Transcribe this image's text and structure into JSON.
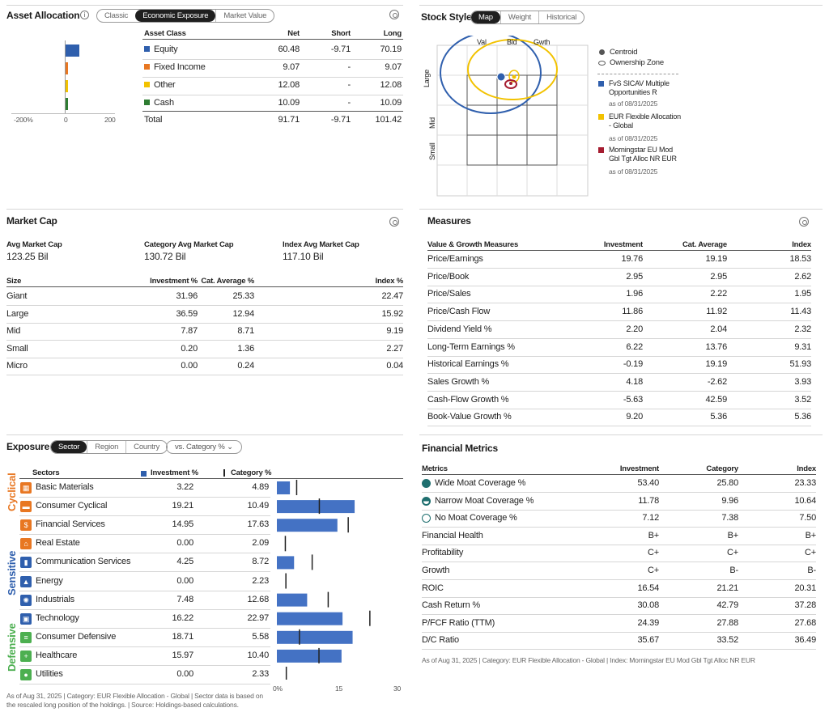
{
  "asset_allocation": {
    "title": "Asset Allocation",
    "tabs": [
      "Classic",
      "Economic Exposure",
      "Market Value"
    ],
    "active_tab": "Economic Exposure",
    "headers": [
      "Asset Class",
      "Net",
      "Short",
      "Long"
    ],
    "rows": [
      {
        "label": "Equity",
        "color": "#2f5fad",
        "net": "60.48",
        "short": "-9.71",
        "long": "70.19",
        "net_value": 60.48
      },
      {
        "label": "Fixed Income",
        "color": "#e87722",
        "net": "9.07",
        "short": "-",
        "long": "9.07",
        "net_value": 9.07
      },
      {
        "label": "Other",
        "color": "#f2c200",
        "net": "12.08",
        "short": "-",
        "long": "12.08",
        "net_value": 12.08
      },
      {
        "label": "Cash",
        "color": "#2e7d32",
        "net": "10.09",
        "short": "-",
        "long": "10.09",
        "net_value": 10.09
      }
    ],
    "total": {
      "label": "Total",
      "net": "91.71",
      "short": "-9.71",
      "long": "101.42"
    },
    "axis": [
      "-200%",
      "0",
      "200"
    ]
  },
  "stock_style": {
    "title": "Stock Style",
    "tabs": [
      "Map",
      "Weight",
      "Historical"
    ],
    "active_tab": "Map",
    "col_labels": [
      "Val",
      "Bld",
      "Gwth"
    ],
    "row_labels": [
      "Large",
      "Mid",
      "Small"
    ],
    "legend_markers": [
      "Centroid",
      "Ownership Zone"
    ],
    "funds": [
      {
        "name": "FvS SICAV Multiple Opportunities R",
        "date": "as of 08/31/2025",
        "color": "#2f5fad"
      },
      {
        "name": "EUR Flexible Allocation - Global",
        "date": "as of 08/31/2025",
        "color": "#f2c200"
      },
      {
        "name": "Morningstar EU Mod Gbl Tgt Alloc NR EUR",
        "date": "as of 08/31/2025",
        "color": "#a51c30"
      }
    ]
  },
  "market_cap": {
    "title": "Market Cap",
    "summary": [
      {
        "label": "Avg Market Cap",
        "value": "123.25 Bil"
      },
      {
        "label": "Category Avg Market Cap",
        "value": "130.72 Bil"
      },
      {
        "label": "Index Avg Market Cap",
        "value": "117.10 Bil"
      }
    ],
    "headers": [
      "Size",
      "Investment %",
      "Cat. Average %",
      "Index %"
    ],
    "rows": [
      [
        "Giant",
        "31.96",
        "25.33",
        "22.47"
      ],
      [
        "Large",
        "36.59",
        "12.94",
        "15.92"
      ],
      [
        "Mid",
        "7.87",
        "8.71",
        "9.19"
      ],
      [
        "Small",
        "0.20",
        "1.36",
        "2.27"
      ],
      [
        "Micro",
        "0.00",
        "0.24",
        "0.04"
      ]
    ]
  },
  "measures": {
    "title": "Measures",
    "headers": [
      "Value & Growth Measures",
      "Investment",
      "Cat. Average",
      "Index"
    ],
    "rows": [
      [
        "Price/Earnings",
        "19.76",
        "19.19",
        "18.53"
      ],
      [
        "Price/Book",
        "2.95",
        "2.95",
        "2.62"
      ],
      [
        "Price/Sales",
        "1.96",
        "2.22",
        "1.95"
      ],
      [
        "Price/Cash Flow",
        "11.86",
        "11.92",
        "11.43"
      ],
      [
        "Dividend Yield %",
        "2.20",
        "2.04",
        "2.32"
      ],
      [
        "Long-Term Earnings %",
        "6.22",
        "13.76",
        "9.31"
      ],
      [
        "Historical Earnings %",
        "-0.19",
        "19.19",
        "51.93"
      ],
      [
        "Sales Growth %",
        "4.18",
        "-2.62",
        "3.93"
      ],
      [
        "Cash-Flow Growth %",
        "-5.63",
        "42.59",
        "3.52"
      ],
      [
        "Book-Value Growth %",
        "9.20",
        "5.36",
        "5.36"
      ]
    ]
  },
  "exposure": {
    "title": "Exposure",
    "tabs": [
      "Sector",
      "Region",
      "Country"
    ],
    "active_tab": "Sector",
    "compare_select": "vs. Category %",
    "headers": {
      "sectors": "Sectors",
      "investment": "Investment %",
      "category": "Category %"
    },
    "groups": [
      {
        "label": "Cyclical",
        "color": "#e87722"
      },
      {
        "label": "Sensitive",
        "color": "#2f5fad"
      },
      {
        "label": "Defensive",
        "color": "#4caf50"
      }
    ],
    "sectors": [
      {
        "name": "Basic Materials",
        "investment": "3.22",
        "category": "4.89",
        "icon_color": "#e87722",
        "icon": "basic-materials-icon",
        "glyph": "▦"
      },
      {
        "name": "Consumer Cyclical",
        "investment": "19.21",
        "category": "10.49",
        "icon_color": "#e87722",
        "icon": "consumer-cyclical-icon",
        "glyph": "▬"
      },
      {
        "name": "Financial Services",
        "investment": "14.95",
        "category": "17.63",
        "icon_color": "#e87722",
        "icon": "financial-services-icon",
        "glyph": "$"
      },
      {
        "name": "Real Estate",
        "investment": "0.00",
        "category": "2.09",
        "icon_color": "#e87722",
        "icon": "real-estate-icon",
        "glyph": "⌂"
      },
      {
        "name": "Communication Services",
        "investment": "4.25",
        "category": "8.72",
        "icon_color": "#2f5fad",
        "icon": "communication-services-icon",
        "glyph": "▮"
      },
      {
        "name": "Energy",
        "investment": "0.00",
        "category": "2.23",
        "icon_color": "#2f5fad",
        "icon": "energy-icon",
        "glyph": "▲"
      },
      {
        "name": "Industrials",
        "investment": "7.48",
        "category": "12.68",
        "icon_color": "#2f5fad",
        "icon": "industrials-icon",
        "glyph": "✺"
      },
      {
        "name": "Technology",
        "investment": "16.22",
        "category": "22.97",
        "icon_color": "#2f5fad",
        "icon": "technology-icon",
        "glyph": "▣"
      },
      {
        "name": "Consumer Defensive",
        "investment": "18.71",
        "category": "5.58",
        "icon_color": "#4caf50",
        "icon": "consumer-defensive-icon",
        "glyph": "≡"
      },
      {
        "name": "Healthcare",
        "investment": "15.97",
        "category": "10.40",
        "icon_color": "#4caf50",
        "icon": "healthcare-icon",
        "glyph": "+"
      },
      {
        "name": "Utilities",
        "investment": "0.00",
        "category": "2.33",
        "icon_color": "#4caf50",
        "icon": "utilities-icon",
        "glyph": "●"
      }
    ],
    "axis": [
      "0%",
      "15",
      "30"
    ],
    "footnote": "As of Aug 31, 2025 | Category: EUR Flexible Allocation - Global | Sector data is based on the rescaled long position of the holdings. | Source: Holdings-based calculations."
  },
  "financial_metrics": {
    "title": "Financial Metrics",
    "headers": [
      "Metrics",
      "Investment",
      "Category",
      "Index"
    ],
    "rows": [
      [
        "Wide Moat Coverage %",
        "53.40",
        "25.80",
        "23.33"
      ],
      [
        "Narrow Moat Coverage %",
        "11.78",
        "9.96",
        "10.64"
      ],
      [
        "No Moat Coverage %",
        "7.12",
        "7.38",
        "7.50"
      ],
      [
        "Financial Health",
        "B+",
        "B+",
        "B+"
      ],
      [
        "Profitability",
        "C+",
        "C+",
        "C+"
      ],
      [
        "Growth",
        "C+",
        "B-",
        "B-"
      ],
      [
        "ROIC",
        "16.54",
        "21.21",
        "20.31"
      ],
      [
        "Cash Return %",
        "30.08",
        "42.79",
        "37.28"
      ],
      [
        "P/FCF Ratio (TTM)",
        "24.39",
        "27.88",
        "27.68"
      ],
      [
        "D/C Ratio",
        "35.67",
        "33.52",
        "36.49"
      ]
    ],
    "moat_icons": [
      "wide-moat-icon",
      "narrow-moat-icon",
      "no-moat-icon"
    ],
    "footnote": "As of Aug 31, 2025 | Category: EUR Flexible Allocation - Global | Index: Morningstar EU Mod Gbl Tgt Alloc NR EUR"
  }
}
